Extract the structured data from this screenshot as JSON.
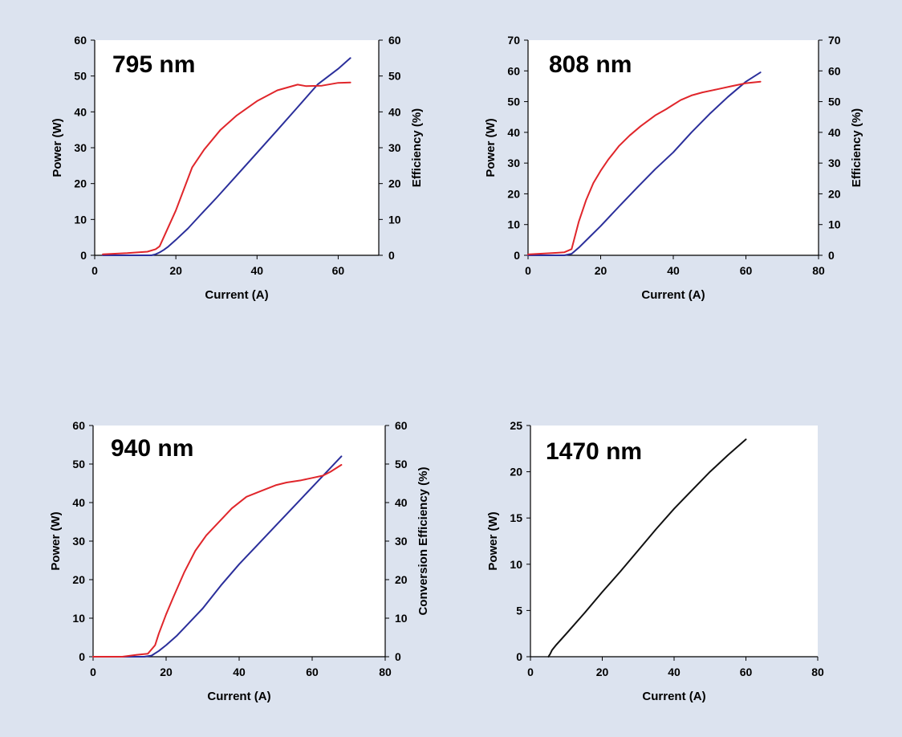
{
  "chart_data": [
    {
      "type": "line",
      "title": "795 nm",
      "xlabel": "Current (A)",
      "ylabel": "Power (W)",
      "y2label": "Efficiency (%)",
      "xlim": [
        0,
        70
      ],
      "ylim": [
        0,
        60
      ],
      "y2lim": [
        0,
        60
      ],
      "xticks": [
        0,
        20,
        40,
        60
      ],
      "yticks": [
        0,
        10,
        20,
        30,
        40,
        50,
        60
      ],
      "y2ticks": [
        0,
        10,
        20,
        30,
        40,
        50,
        60
      ],
      "grid": false,
      "legend": "none",
      "series": [
        {
          "color": "#2b2f9b",
          "axis": "left",
          "x": [
            2,
            10,
            14,
            15,
            16,
            17,
            18,
            20,
            23,
            26,
            30,
            35,
            40,
            45,
            50,
            55,
            60,
            63
          ],
          "y": [
            0,
            0,
            0,
            0.3,
            0.8,
            1.5,
            2.3,
            4.3,
            7.5,
            11.2,
            16.0,
            22.3,
            28.6,
            34.9,
            41.3,
            47.7,
            52.0,
            55.0
          ]
        },
        {
          "color": "#e0262b",
          "axis": "right",
          "x": [
            2,
            8,
            13,
            15,
            16,
            20,
            24,
            27,
            31,
            35,
            40,
            45,
            50,
            52,
            56,
            60,
            63
          ],
          "y": [
            0.3,
            0.6,
            1.0,
            1.7,
            2.5,
            12.5,
            24.5,
            29.5,
            35.0,
            39.0,
            43.0,
            46.0,
            47.6,
            47.2,
            47.3,
            48.1,
            48.2
          ]
        }
      ]
    },
    {
      "type": "line",
      "title": "808 nm",
      "xlabel": "Current (A)",
      "ylabel": "Power (W)",
      "y2label": "Efficiency (%)",
      "xlim": [
        0,
        80
      ],
      "ylim": [
        0,
        70
      ],
      "y2lim": [
        0,
        70
      ],
      "xticks": [
        0,
        20,
        40,
        60,
        80
      ],
      "yticks": [
        0,
        10,
        20,
        30,
        40,
        50,
        60,
        70
      ],
      "y2ticks": [
        0,
        10,
        20,
        30,
        40,
        50,
        60,
        70
      ],
      "grid": false,
      "legend": "none",
      "series": [
        {
          "color": "#2b2f9b",
          "axis": "left",
          "x": [
            0,
            10,
            12,
            14,
            17,
            20,
            25,
            30,
            35,
            40,
            45,
            50,
            55,
            60,
            64
          ],
          "y": [
            0,
            0,
            0.5,
            2.5,
            6.0,
            9.5,
            15.8,
            22.0,
            28.0,
            33.5,
            40.0,
            46.0,
            51.5,
            56.5,
            59.5
          ]
        },
        {
          "color": "#e0262b",
          "axis": "right",
          "x": [
            0,
            8,
            10,
            12,
            14,
            16,
            18,
            20,
            22,
            25,
            28,
            31,
            35,
            38,
            40,
            42,
            45,
            48,
            52,
            56,
            60,
            64
          ],
          "y": [
            0.3,
            0.8,
            1.0,
            2.0,
            11.0,
            18.0,
            23.5,
            27.5,
            31.0,
            35.5,
            39.0,
            42.0,
            45.5,
            47.5,
            49.0,
            50.5,
            52.0,
            53.0,
            54.0,
            55.0,
            56.0,
            56.5
          ]
        }
      ]
    },
    {
      "type": "line",
      "title": "940 nm",
      "xlabel": "Current (A)",
      "ylabel": "Power (W)",
      "y2label": "Conversion Efficiency (%)",
      "xlim": [
        0,
        80
      ],
      "ylim": [
        0,
        60
      ],
      "y2lim": [
        0,
        60
      ],
      "xticks": [
        0,
        20,
        40,
        60,
        80
      ],
      "yticks": [
        0,
        10,
        20,
        30,
        40,
        50,
        60
      ],
      "y2ticks": [
        0,
        10,
        20,
        30,
        40,
        50,
        60
      ],
      "grid": false,
      "legend": "none",
      "series": [
        {
          "color": "#2b2f9b",
          "axis": "left",
          "x": [
            0,
            14,
            16,
            18,
            20,
            23,
            26,
            30,
            35,
            40,
            45,
            50,
            55,
            60,
            65,
            68
          ],
          "y": [
            0,
            0,
            0.3,
            1.5,
            3.0,
            5.5,
            8.5,
            12.5,
            18.5,
            24.0,
            29.0,
            34.0,
            39.0,
            44.0,
            49.0,
            52.0
          ]
        },
        {
          "color": "#e0262b",
          "axis": "right",
          "x": [
            0,
            8,
            12,
            15,
            17,
            18,
            20,
            22,
            25,
            28,
            31,
            35,
            38,
            42,
            46,
            50,
            53,
            57,
            60,
            63,
            65,
            68
          ],
          "y": [
            0,
            0,
            0.5,
            0.8,
            3.0,
            6.0,
            11.0,
            15.5,
            22.0,
            27.5,
            31.5,
            35.5,
            38.5,
            41.5,
            43.0,
            44.5,
            45.2,
            45.8,
            46.4,
            47.0,
            48.0,
            49.8
          ]
        }
      ]
    },
    {
      "type": "line",
      "title": "1470 nm",
      "xlabel": "Current (A)",
      "ylabel": "Power (W)",
      "xlim": [
        0,
        80
      ],
      "ylim": [
        0,
        25
      ],
      "xticks": [
        0,
        20,
        40,
        60,
        80
      ],
      "yticks": [
        0,
        5,
        10,
        15,
        20,
        25
      ],
      "grid": false,
      "legend": "none",
      "series": [
        {
          "color": "#111111",
          "axis": "left",
          "x": [
            5,
            5.5,
            6,
            7,
            10,
            15,
            20,
            25,
            30,
            35,
            40,
            45,
            50,
            55,
            60
          ],
          "y": [
            0,
            0.3,
            0.7,
            1.2,
            2.5,
            4.7,
            7.0,
            9.2,
            11.5,
            13.8,
            16.0,
            18.0,
            20.0,
            21.8,
            23.5
          ]
        }
      ]
    }
  ]
}
